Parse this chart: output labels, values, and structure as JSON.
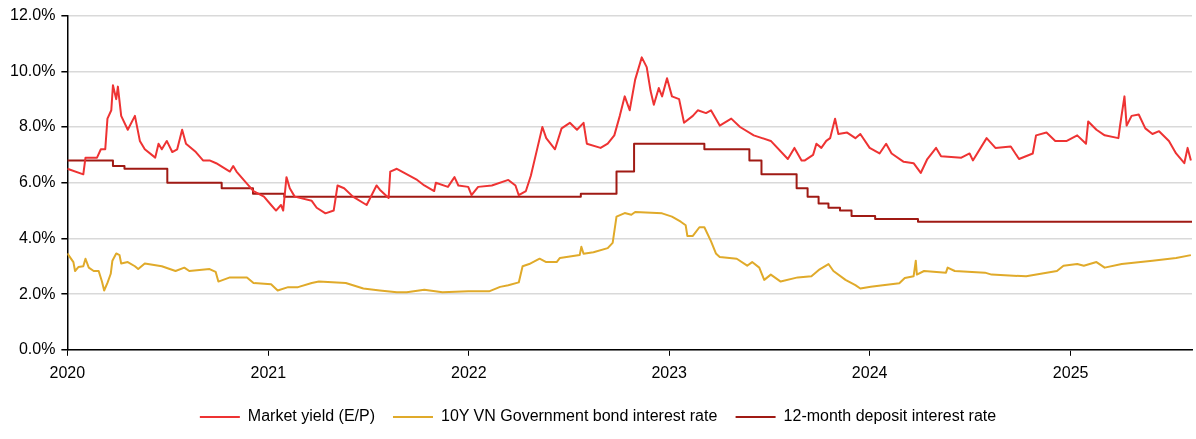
{
  "chart_data": {
    "type": "line",
    "legend": "bottom",
    "grid": "y",
    "marker": "none",
    "line_style": "solid",
    "xlim": [
      "2020-01-01",
      "2025-08-10"
    ],
    "xticks": [
      {
        "value": "2020-01-01",
        "label": "2020"
      },
      {
        "value": "2021-01-01",
        "label": "2021"
      },
      {
        "value": "2022-01-01",
        "label": "2022"
      },
      {
        "value": "2023-01-01",
        "label": "2023"
      },
      {
        "value": "2024-01-01",
        "label": "2024"
      },
      {
        "value": "2025-01-01",
        "label": "2025"
      }
    ],
    "ylim": [
      0,
      12
    ],
    "yticks": [
      {
        "value": 0,
        "label": "0.0%"
      },
      {
        "value": 2,
        "label": "2.0%"
      },
      {
        "value": 4,
        "label": "4.0%"
      },
      {
        "value": 6,
        "label": "6.0%"
      },
      {
        "value": 8,
        "label": "8.0%"
      },
      {
        "value": 10,
        "label": "10.0%"
      },
      {
        "value": 12,
        "label": "12.0%"
      }
    ],
    "series": [
      {
        "name": "Market yield (E/P)",
        "color": "#ee3333",
        "x": [
          "2020-01-01",
          "2020-01-30",
          "2020-02-03",
          "2020-02-24",
          "2020-03-02",
          "2020-03-10",
          "2020-03-14",
          "2020-03-21",
          "2020-03-24",
          "2020-03-30",
          "2020-04-02",
          "2020-04-08",
          "2020-04-20",
          "2020-05-03",
          "2020-05-12",
          "2020-05-21",
          "2020-06-09",
          "2020-06-15",
          "2020-06-21",
          "2020-06-30",
          "2020-07-10",
          "2020-07-19",
          "2020-07-28",
          "2020-08-04",
          "2020-08-22",
          "2020-09-04",
          "2020-09-16",
          "2020-09-28",
          "2020-10-23",
          "2020-10-29",
          "2020-11-04",
          "2020-11-17",
          "2020-12-05",
          "2020-12-24",
          "2021-01-06",
          "2021-01-15",
          "2021-01-24",
          "2021-01-28",
          "2021-02-03",
          "2021-02-09",
          "2021-02-18",
          "2021-03-21",
          "2021-03-30",
          "2021-04-15",
          "2021-04-30",
          "2021-05-07",
          "2021-05-19",
          "2021-06-04",
          "2021-06-29",
          "2021-07-17",
          "2021-07-23",
          "2021-08-08",
          "2021-08-11",
          "2021-08-23",
          "2021-09-29",
          "2021-10-12",
          "2021-10-30",
          "2021-11-02",
          "2021-11-24",
          "2021-12-06",
          "2021-12-13",
          "2021-12-31",
          "2022-01-06",
          "2022-01-18",
          "2022-02-12",
          "2022-03-14",
          "2022-03-27",
          "2022-04-02",
          "2022-04-15",
          "2022-04-24",
          "2022-05-06",
          "2022-05-15",
          "2022-05-22",
          "2022-06-07",
          "2022-06-19",
          "2022-07-04",
          "2022-07-17",
          "2022-07-29",
          "2022-08-04",
          "2022-08-29",
          "2022-09-11",
          "2022-09-23",
          "2022-10-03",
          "2022-10-12",
          "2022-10-21",
          "2022-10-31",
          "2022-11-12",
          "2022-11-21",
          "2022-11-28",
          "2022-12-04",
          "2022-12-13",
          "2022-12-19",
          "2022-12-28",
          "2023-01-06",
          "2023-01-19",
          "2023-01-28",
          "2023-02-13",
          "2023-02-22",
          "2023-03-09",
          "2023-03-18",
          "2023-04-03",
          "2023-04-24",
          "2023-05-10",
          "2023-06-04",
          "2023-07-05",
          "2023-08-05",
          "2023-08-17",
          "2023-08-30",
          "2023-09-05",
          "2023-09-20",
          "2023-09-26",
          "2023-10-05",
          "2023-10-14",
          "2023-10-21",
          "2023-10-30",
          "2023-11-05",
          "2023-11-21",
          "2023-12-06",
          "2023-12-15",
          "2024-01-01",
          "2024-01-19",
          "2024-01-31",
          "2024-02-10",
          "2024-03-03",
          "2024-03-21",
          "2024-04-03",
          "2024-04-15",
          "2024-05-01",
          "2024-05-10",
          "2024-06-16",
          "2024-07-01",
          "2024-07-07",
          "2024-08-01",
          "2024-08-17",
          "2024-09-14",
          "2024-09-29",
          "2024-10-24",
          "2024-10-30",
          "2024-11-18",
          "2024-12-04",
          "2024-12-25",
          "2025-01-13",
          "2025-01-29",
          "2025-02-02",
          "2025-02-17",
          "2025-03-04",
          "2025-03-29",
          "2025-04-01",
          "2025-04-09",
          "2025-04-13",
          "2025-04-22",
          "2025-05-05",
          "2025-05-17",
          "2025-05-30",
          "2025-06-11",
          "2025-06-29",
          "2025-07-12",
          "2025-07-27",
          "2025-08-02",
          "2025-08-08"
        ],
        "values": [
          6.5,
          6.3,
          6.9,
          6.9,
          7.2,
          7.2,
          8.3,
          8.6,
          9.5,
          9.0,
          9.45,
          8.4,
          7.9,
          8.4,
          7.5,
          7.2,
          6.9,
          7.4,
          7.2,
          7.5,
          7.1,
          7.2,
          7.9,
          7.4,
          7.1,
          6.8,
          6.8,
          6.7,
          6.4,
          6.6,
          6.4,
          6.1,
          5.7,
          5.5,
          5.2,
          5.0,
          5.2,
          5.0,
          6.2,
          5.8,
          5.5,
          5.35,
          5.1,
          4.9,
          5.0,
          5.9,
          5.8,
          5.5,
          5.2,
          5.9,
          5.75,
          5.45,
          6.4,
          6.5,
          6.1,
          5.9,
          5.7,
          6.0,
          5.85,
          6.2,
          5.9,
          5.85,
          5.55,
          5.85,
          5.9,
          6.1,
          5.9,
          5.55,
          5.7,
          6.25,
          7.25,
          8.0,
          7.6,
          7.2,
          7.95,
          8.15,
          7.9,
          8.15,
          7.4,
          7.25,
          7.4,
          7.7,
          8.4,
          9.1,
          8.6,
          9.7,
          10.5,
          10.15,
          9.3,
          8.8,
          9.4,
          9.1,
          9.75,
          9.1,
          9.0,
          8.15,
          8.4,
          8.6,
          8.5,
          8.6,
          8.05,
          8.3,
          8.0,
          7.7,
          7.5,
          6.85,
          7.25,
          6.8,
          6.8,
          7.0,
          7.4,
          7.25,
          7.5,
          7.6,
          8.3,
          7.75,
          7.8,
          7.6,
          7.75,
          7.25,
          7.05,
          7.4,
          7.05,
          6.75,
          6.7,
          6.35,
          6.85,
          7.25,
          6.95,
          6.9,
          7.05,
          6.8,
          7.6,
          7.25,
          7.3,
          6.85,
          7.05,
          7.7,
          7.8,
          7.5,
          7.5,
          7.7,
          7.4,
          8.2,
          7.9,
          7.7,
          7.6,
          8.05,
          9.1,
          8.05,
          8.4,
          8.45,
          7.95,
          7.75,
          7.85,
          7.5,
          7.05,
          6.7,
          7.25,
          6.8
        ]
      },
      {
        "name": "10Y VN Government bond interest rate",
        "color": "#e0aa2a",
        "x": [
          "2020-01-01",
          "2020-01-12",
          "2020-01-15",
          "2020-01-21",
          "2020-01-30",
          "2020-02-03",
          "2020-02-09",
          "2020-02-18",
          "2020-02-27",
          "2020-03-04",
          "2020-03-08",
          "2020-03-14",
          "2020-03-20",
          "2020-03-23",
          "2020-03-30",
          "2020-04-05",
          "2020-04-08",
          "2020-04-20",
          "2020-05-03",
          "2020-05-09",
          "2020-05-21",
          "2020-06-21",
          "2020-07-16",
          "2020-08-01",
          "2020-08-10",
          "2020-09-16",
          "2020-09-27",
          "2020-10-02",
          "2020-10-23",
          "2020-11-23",
          "2020-12-05",
          "2021-01-06",
          "2021-01-18",
          "2021-02-06",
          "2021-02-24",
          "2021-03-21",
          "2021-04-03",
          "2021-05-22",
          "2021-06-23",
          "2021-07-23",
          "2021-08-23",
          "2021-09-10",
          "2021-10-12",
          "2021-11-14",
          "2021-12-31",
          "2022-02-07",
          "2022-02-27",
          "2022-03-14",
          "2022-04-02",
          "2022-04-09",
          "2022-04-21",
          "2022-05-10",
          "2022-05-22",
          "2022-06-10",
          "2022-06-16",
          "2022-07-22",
          "2022-07-25",
          "2022-07-29",
          "2022-08-16",
          "2022-09-11",
          "2022-09-20",
          "2022-09-27",
          "2022-10-12",
          "2022-10-24",
          "2022-10-31",
          "2022-12-19",
          "2023-01-06",
          "2023-01-22",
          "2023-01-31",
          "2023-02-03",
          "2023-02-13",
          "2023-02-25",
          "2023-03-06",
          "2023-03-18",
          "2023-03-27",
          "2023-04-03",
          "2023-05-04",
          "2023-05-23",
          "2023-06-01",
          "2023-06-14",
          "2023-06-23",
          "2023-07-05",
          "2023-07-23",
          "2023-08-23",
          "2023-09-17",
          "2023-10-02",
          "2023-10-18",
          "2023-10-27",
          "2023-11-18",
          "2023-12-06",
          "2023-12-15",
          "2024-01-03",
          "2024-01-25",
          "2024-02-24",
          "2024-03-05",
          "2024-03-21",
          "2024-03-25",
          "2024-03-27",
          "2024-04-09",
          "2024-05-19",
          "2024-05-22",
          "2024-06-04",
          "2024-07-29",
          "2024-08-10",
          "2024-10-12",
          "2024-12-07",
          "2024-12-19",
          "2025-01-13",
          "2025-01-25",
          "2025-02-17",
          "2025-03-04",
          "2025-04-04",
          "2025-05-30",
          "2025-07-12",
          "2025-08-08"
        ],
        "values": [
          3.46,
          3.15,
          2.83,
          2.97,
          3.0,
          3.27,
          2.95,
          2.83,
          2.83,
          2.45,
          2.13,
          2.4,
          2.73,
          3.2,
          3.46,
          3.4,
          3.1,
          3.15,
          3.0,
          2.9,
          3.1,
          3.0,
          2.83,
          2.95,
          2.83,
          2.9,
          2.8,
          2.45,
          2.6,
          2.6,
          2.4,
          2.35,
          2.13,
          2.25,
          2.25,
          2.4,
          2.45,
          2.4,
          2.2,
          2.13,
          2.07,
          2.07,
          2.16,
          2.07,
          2.1,
          2.1,
          2.26,
          2.32,
          2.42,
          3.0,
          3.08,
          3.27,
          3.15,
          3.15,
          3.3,
          3.4,
          3.7,
          3.45,
          3.5,
          3.65,
          3.84,
          4.78,
          4.91,
          4.85,
          4.95,
          4.9,
          4.78,
          4.6,
          4.47,
          4.09,
          4.09,
          4.4,
          4.4,
          3.9,
          3.46,
          3.33,
          3.27,
          3.02,
          3.15,
          2.95,
          2.51,
          2.7,
          2.45,
          2.6,
          2.64,
          2.89,
          3.08,
          2.83,
          2.51,
          2.32,
          2.2,
          2.26,
          2.32,
          2.39,
          2.58,
          2.64,
          3.2,
          2.7,
          2.83,
          2.77,
          2.95,
          2.83,
          2.77,
          2.7,
          2.64,
          2.83,
          3.02,
          3.08,
          3.02,
          3.15,
          2.95,
          3.08,
          3.2,
          3.3,
          3.4
        ]
      },
      {
        "name": "12-month deposit interest rate",
        "color": "#a01a14",
        "type": "step",
        "x": [
          "2020-01-01",
          "2020-03-24",
          "2020-04-14",
          "2020-07-01",
          "2020-10-08",
          "2020-12-04",
          "2021-01-30",
          "2022-07-24",
          "2022-09-27",
          "2022-10-29",
          "2023-03-06",
          "2023-05-27",
          "2023-06-18",
          "2023-08-21",
          "2023-09-10",
          "2023-09-30",
          "2023-10-18",
          "2023-11-08",
          "2023-11-29",
          "2024-01-11",
          "2024-03-29",
          "2025-08-10"
        ],
        "values": [
          6.8,
          6.6,
          6.5,
          6.0,
          5.8,
          5.6,
          5.5,
          5.6,
          6.4,
          7.4,
          7.2,
          6.8,
          6.3,
          5.8,
          5.5,
          5.25,
          5.1,
          5.0,
          4.8,
          4.7,
          4.6,
          4.6
        ]
      }
    ]
  }
}
